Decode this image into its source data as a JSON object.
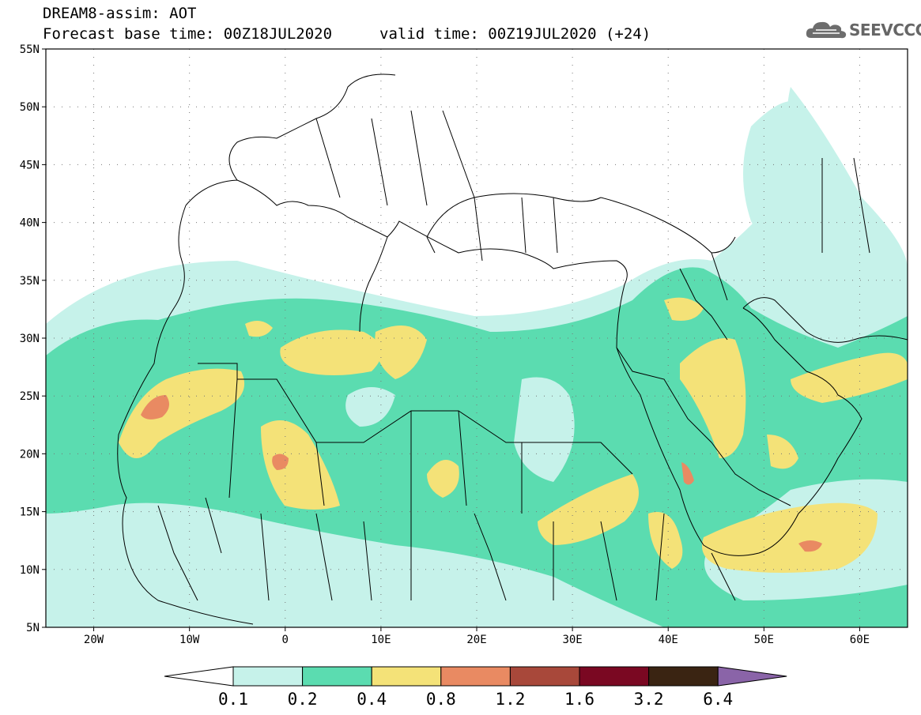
{
  "header": {
    "model": "DREAM8-assim: AOT",
    "base_time": "Forecast base time: 00Z18JUL2020",
    "valid_time": "valid time: 00Z19JUL2020 (+24)"
  },
  "logo": {
    "icon": "cloud-icon",
    "text": "SEEVCCC"
  },
  "map": {
    "lon_range": [
      -25,
      65
    ],
    "lat_range": [
      5,
      55
    ],
    "lat_ticks": [
      "55N",
      "50N",
      "45N",
      "40N",
      "35N",
      "30N",
      "25N",
      "20N",
      "15N",
      "10N",
      "5N"
    ],
    "lon_ticks": [
      "20W",
      "10W",
      "0",
      "10E",
      "20E",
      "30E",
      "40E",
      "50E",
      "60E"
    ],
    "gridlines": "dotted"
  },
  "colorbar": {
    "levels": [
      "0.1",
      "0.2",
      "0.4",
      "0.8",
      "1.2",
      "1.6",
      "3.2",
      "6.4"
    ],
    "colors": {
      "below": "#ffffff",
      "b1": "#c6f2ea",
      "b2": "#5bdcb0",
      "b3": "#f4e278",
      "b4": "#e98a62",
      "b5": "#a8483a",
      "b6": "#7a0822",
      "b7": "#3a2412",
      "above": "#8a64a8"
    }
  }
}
